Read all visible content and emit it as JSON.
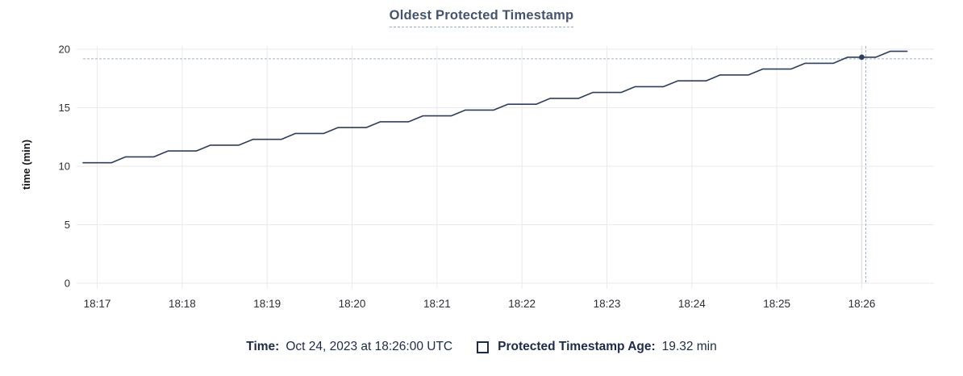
{
  "title": "Oldest Protected Timestamp",
  "y_axis_label": "time (min)",
  "tooltip": {
    "time_label": "Time:",
    "time_value": "Oct 24, 2023 at 18:26:00 UTC",
    "series_label": "Protected Timestamp Age:",
    "series_value": "19.32 min"
  },
  "colors": {
    "line": "#2e3e5d",
    "grid": "#eaeaea",
    "crosshair": "#9fb3c6",
    "guide": "#dde3e9",
    "title": "#44536f",
    "title_underline": "#9cb0c3",
    "legend_text": "#1c2b4a",
    "tick_text": "#2b2e33"
  },
  "chart_data": {
    "type": "line",
    "title": "Oldest Protected Timestamp",
    "xlabel": "",
    "ylabel": "time (min)",
    "ylim": [
      0,
      20
    ],
    "y_ticks": [
      0,
      5,
      10,
      15,
      20
    ],
    "x_ticks": [
      "18:17",
      "18:18",
      "18:19",
      "18:20",
      "18:21",
      "18:22",
      "18:23",
      "18:24",
      "18:25",
      "18:26"
    ],
    "x_domain": [
      "18:16:50",
      "18:26:51"
    ],
    "grid": true,
    "legend_position": "bottom",
    "series": [
      {
        "name": "Protected Timestamp Age",
        "unit": "min",
        "points": [
          [
            "18:16:50",
            10.3
          ],
          [
            "18:17:10",
            10.3
          ],
          [
            "18:17:20",
            10.8
          ],
          [
            "18:17:40",
            10.8
          ],
          [
            "18:17:50",
            11.3
          ],
          [
            "18:18:10",
            11.3
          ],
          [
            "18:18:20",
            11.8
          ],
          [
            "18:18:40",
            11.8
          ],
          [
            "18:18:50",
            12.3
          ],
          [
            "18:19:10",
            12.3
          ],
          [
            "18:19:20",
            12.8
          ],
          [
            "18:19:40",
            12.8
          ],
          [
            "18:19:50",
            13.3
          ],
          [
            "18:20:10",
            13.3
          ],
          [
            "18:20:20",
            13.8
          ],
          [
            "18:20:40",
            13.8
          ],
          [
            "18:20:50",
            14.3
          ],
          [
            "18:21:10",
            14.3
          ],
          [
            "18:21:20",
            14.8
          ],
          [
            "18:21:40",
            14.8
          ],
          [
            "18:21:50",
            15.3
          ],
          [
            "18:22:10",
            15.3
          ],
          [
            "18:22:20",
            15.8
          ],
          [
            "18:22:40",
            15.8
          ],
          [
            "18:22:50",
            16.3
          ],
          [
            "18:23:10",
            16.3
          ],
          [
            "18:23:20",
            16.8
          ],
          [
            "18:23:40",
            16.8
          ],
          [
            "18:23:50",
            17.3
          ],
          [
            "18:24:10",
            17.3
          ],
          [
            "18:24:20",
            17.8
          ],
          [
            "18:24:40",
            17.8
          ],
          [
            "18:24:50",
            18.3
          ],
          [
            "18:25:10",
            18.3
          ],
          [
            "18:25:20",
            18.8
          ],
          [
            "18:25:40",
            18.8
          ],
          [
            "18:25:50",
            19.32
          ],
          [
            "18:26:10",
            19.32
          ],
          [
            "18:26:20",
            19.82
          ],
          [
            "18:26:32",
            19.82
          ]
        ]
      }
    ],
    "hover": {
      "time": "18:26:00",
      "value": 19.32,
      "time_label": "Oct 24, 2023 at 18:26:00 UTC",
      "value_label": "19.32 min"
    }
  }
}
